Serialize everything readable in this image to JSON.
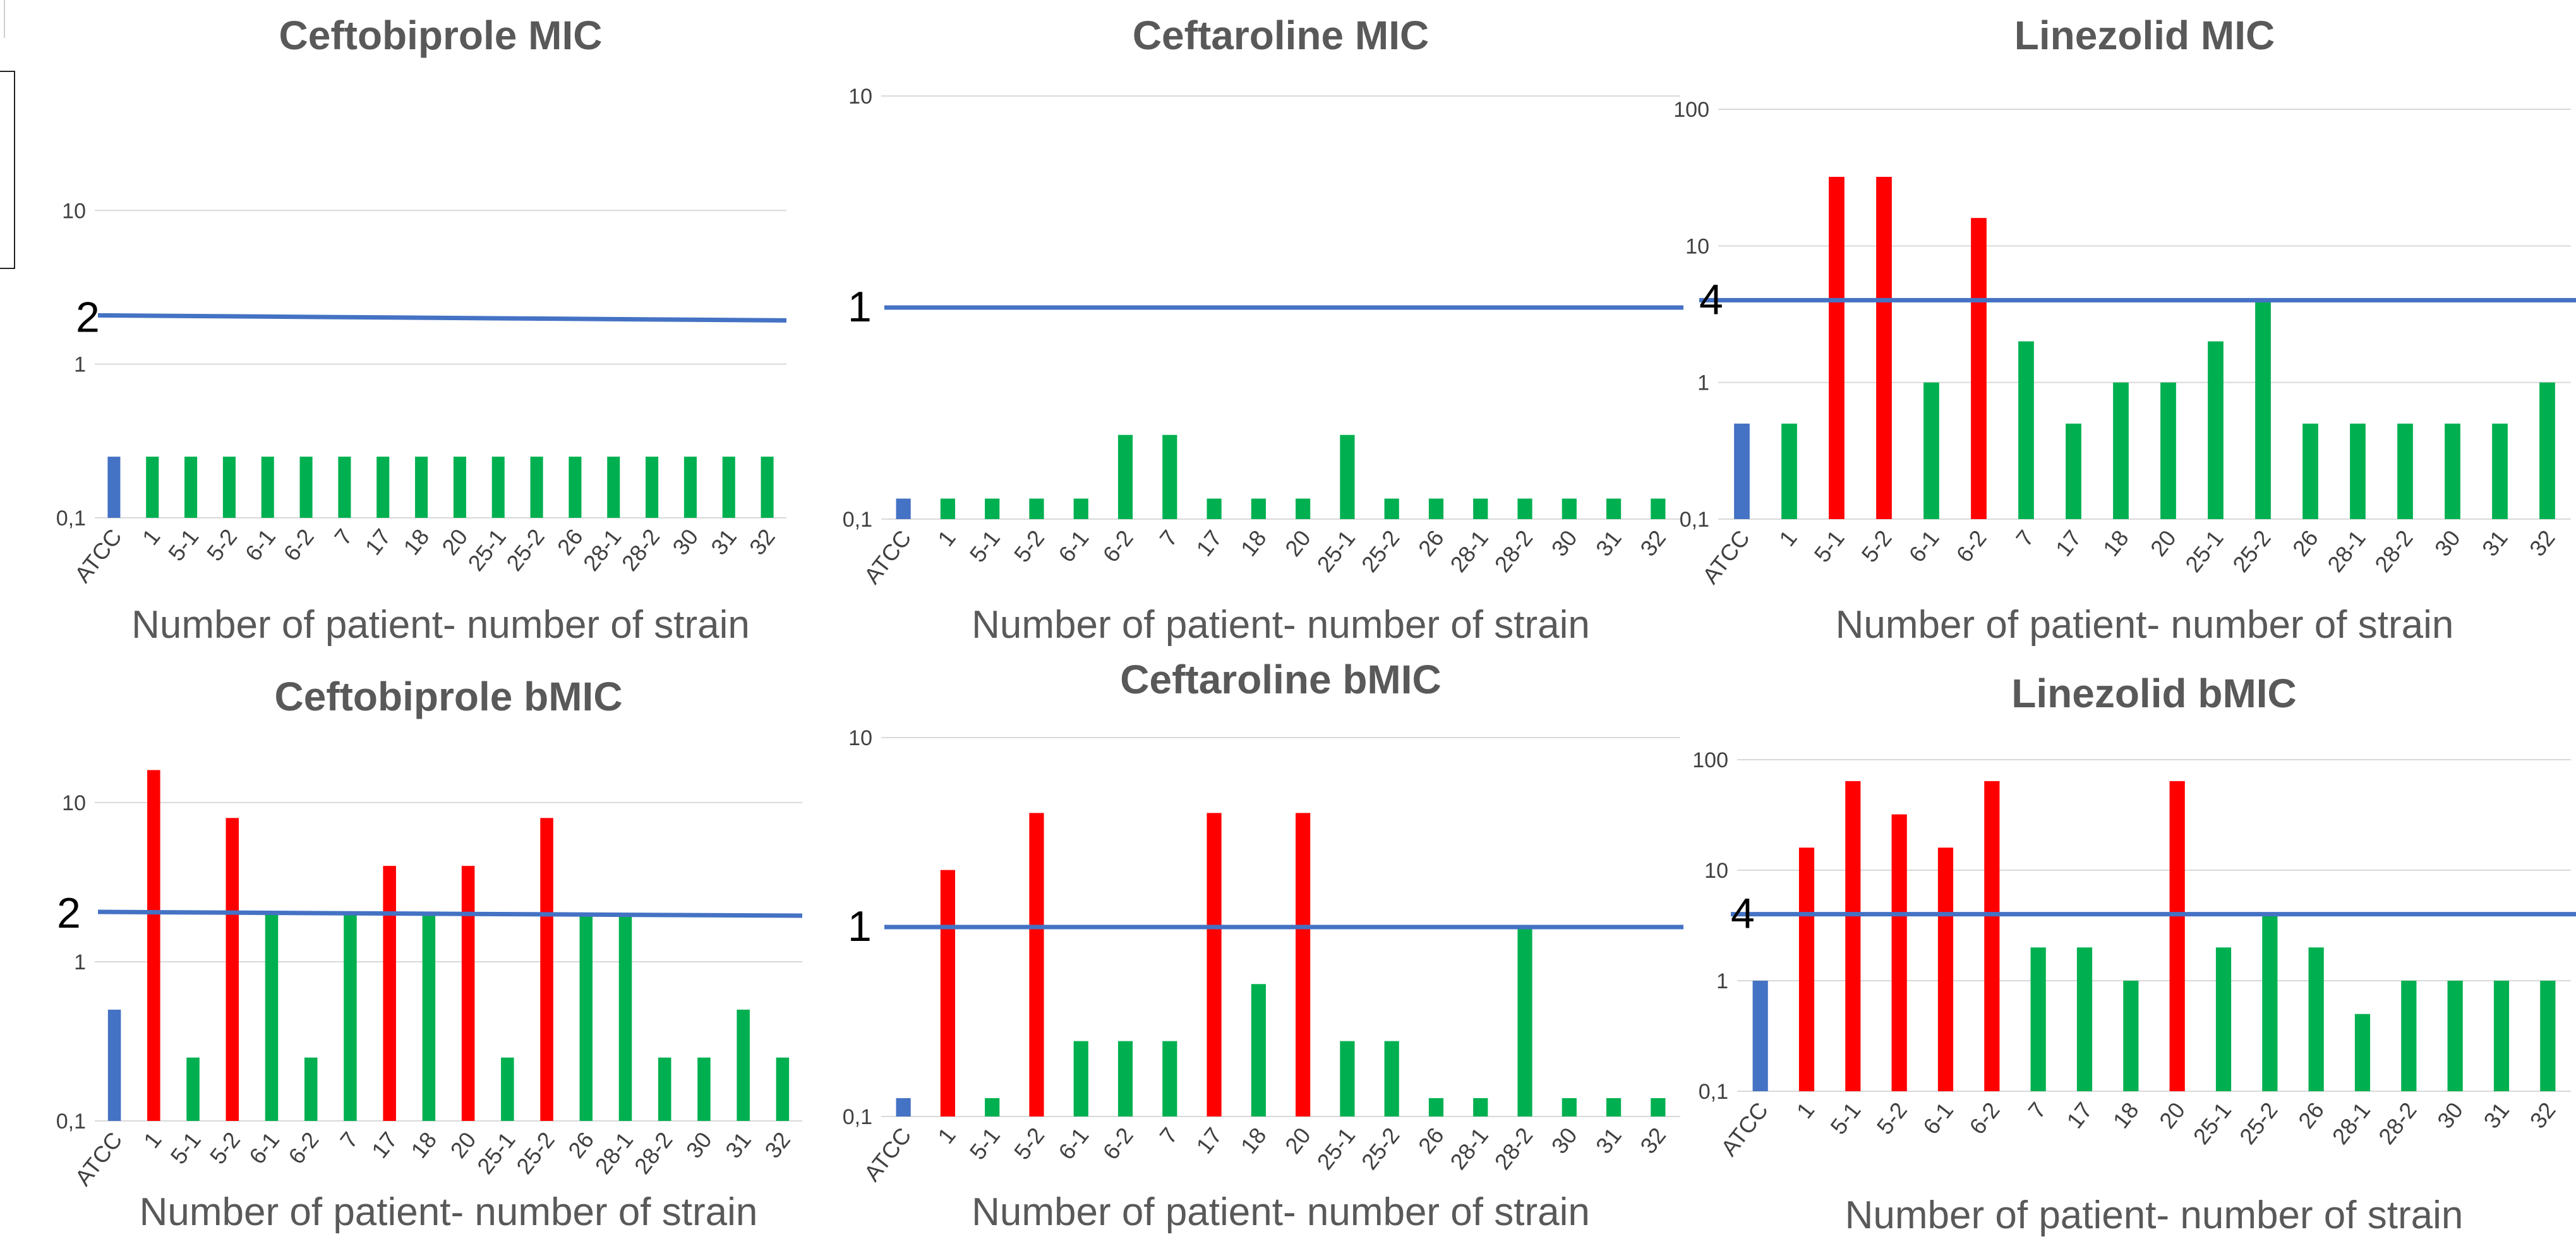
{
  "colors": {
    "atcc": "#4472c4",
    "susceptible": "#00b050",
    "resistant": "#ff0000",
    "breakpoint": "#4472c4"
  },
  "chart_data": [
    {
      "type": "bar",
      "title": "Ceftobiprole MIC",
      "xlabel": "Number of patient- number of strain",
      "ylabel": "",
      "yscale": "log",
      "yticks": [
        "10",
        "1",
        "0,1"
      ],
      "ylim": [
        0.1,
        20
      ],
      "breakpoint": {
        "value": 2,
        "label": "2"
      },
      "categories": [
        "ATCC",
        "1",
        "5-1",
        "5-2",
        "6-1",
        "6-2",
        "7",
        "17",
        "18",
        "20",
        "25-1",
        "25-2",
        "26",
        "28-1",
        "28-2",
        "30",
        "31",
        "32"
      ],
      "values": [
        0.25,
        0.25,
        0.25,
        0.25,
        0.25,
        0.25,
        0.25,
        0.25,
        0.25,
        0.25,
        0.25,
        0.25,
        0.25,
        0.25,
        0.25,
        0.25,
        0.25,
        0.25
      ],
      "bar_colors": [
        "atcc",
        "susceptible",
        "susceptible",
        "susceptible",
        "susceptible",
        "susceptible",
        "susceptible",
        "susceptible",
        "susceptible",
        "susceptible",
        "susceptible",
        "susceptible",
        "susceptible",
        "susceptible",
        "susceptible",
        "susceptible",
        "susceptible",
        "susceptible"
      ]
    },
    {
      "type": "bar",
      "title": "Ceftaroline MIC",
      "xlabel": "Number of patient- number of strain",
      "ylabel": "",
      "yscale": "log",
      "yticks": [
        "10",
        "0,1"
      ],
      "ylim": [
        0.1,
        10
      ],
      "breakpoint": {
        "value": 1,
        "label": "1"
      },
      "categories": [
        "ATCC",
        "1",
        "5-1",
        "5-2",
        "6-1",
        "6-2",
        "7",
        "17",
        "18",
        "20",
        "25-1",
        "25-2",
        "26",
        "28-1",
        "28-2",
        "30",
        "31",
        "32"
      ],
      "values": [
        0.125,
        0.125,
        0.125,
        0.125,
        0.125,
        0.25,
        0.25,
        0.125,
        0.125,
        0.125,
        0.25,
        0.125,
        0.125,
        0.125,
        0.125,
        0.125,
        0.125,
        0.125
      ],
      "bar_colors": [
        "atcc",
        "susceptible",
        "susceptible",
        "susceptible",
        "susceptible",
        "susceptible",
        "susceptible",
        "susceptible",
        "susceptible",
        "susceptible",
        "susceptible",
        "susceptible",
        "susceptible",
        "susceptible",
        "susceptible",
        "susceptible",
        "susceptible",
        "susceptible"
      ]
    },
    {
      "type": "bar",
      "title": "Linezolid MIC",
      "xlabel": "Number of patient- number of strain",
      "ylabel": "",
      "yscale": "log",
      "yticks": [
        "100",
        "10",
        "1",
        "0,1"
      ],
      "ylim": [
        0.1,
        100
      ],
      "breakpoint": {
        "value": 4,
        "label": "4"
      },
      "categories": [
        "ATCC",
        "1",
        "5-1",
        "5-2",
        "6-1",
        "6-2",
        "7",
        "17",
        "18",
        "20",
        "25-1",
        "25-2",
        "26",
        "28-1",
        "28-2",
        "30",
        "31",
        "32"
      ],
      "values": [
        0.5,
        0.5,
        32,
        32,
        1,
        16,
        2,
        0.5,
        1,
        1,
        2,
        4,
        0.5,
        0.5,
        0.5,
        0.5,
        0.5,
        1
      ],
      "bar_colors": [
        "atcc",
        "susceptible",
        "resistant",
        "resistant",
        "susceptible",
        "resistant",
        "susceptible",
        "susceptible",
        "susceptible",
        "susceptible",
        "susceptible",
        "susceptible",
        "susceptible",
        "susceptible",
        "susceptible",
        "susceptible",
        "susceptible",
        "susceptible"
      ]
    },
    {
      "type": "bar",
      "title": "Ceftobiprole bMIC",
      "xlabel": "Number of patient- number of strain",
      "ylabel": "",
      "yscale": "log",
      "yticks": [
        "10",
        "1",
        "0,1"
      ],
      "ylim": [
        0.1,
        20
      ],
      "breakpoint": {
        "value": 2,
        "label": "2"
      },
      "categories": [
        "ATCC",
        "1",
        "5-1",
        "5-2",
        "6-1",
        "6-2",
        "7",
        "17",
        "18",
        "20",
        "25-1",
        "25-2",
        "26",
        "28-1",
        "28-2",
        "30",
        "31",
        "32"
      ],
      "values": [
        0.5,
        16,
        0.25,
        8,
        2,
        0.25,
        2,
        4,
        2,
        4,
        0.25,
        8,
        2,
        2,
        0.25,
        0.25,
        0.5,
        0.25
      ],
      "bar_colors": [
        "atcc",
        "resistant",
        "susceptible",
        "resistant",
        "susceptible",
        "susceptible",
        "susceptible",
        "resistant",
        "susceptible",
        "resistant",
        "susceptible",
        "resistant",
        "susceptible",
        "susceptible",
        "susceptible",
        "susceptible",
        "susceptible",
        "susceptible"
      ]
    },
    {
      "type": "bar",
      "title": "Ceftaroline bMIC",
      "xlabel": "Number of patient- number of strain",
      "ylabel": "",
      "yscale": "log",
      "yticks": [
        "10",
        "0,1"
      ],
      "ylim": [
        0.1,
        10
      ],
      "breakpoint": {
        "value": 1,
        "label": "1"
      },
      "categories": [
        "ATCC",
        "1",
        "5-1",
        "5-2",
        "6-1",
        "6-2",
        "7",
        "17",
        "18",
        "20",
        "25-1",
        "25-2",
        "26",
        "28-1",
        "28-2",
        "30",
        "31",
        "32"
      ],
      "values": [
        0.125,
        2,
        0.125,
        4,
        0.25,
        0.25,
        0.25,
        4,
        0.5,
        4,
        0.25,
        0.25,
        0.125,
        0.125,
        1,
        0.125,
        0.125,
        0.125
      ],
      "bar_colors": [
        "atcc",
        "resistant",
        "susceptible",
        "resistant",
        "susceptible",
        "susceptible",
        "susceptible",
        "resistant",
        "susceptible",
        "resistant",
        "susceptible",
        "susceptible",
        "susceptible",
        "susceptible",
        "susceptible",
        "susceptible",
        "susceptible",
        "susceptible"
      ]
    },
    {
      "type": "bar",
      "title": "Linezolid bMIC",
      "xlabel": "Number of patient- number of strain",
      "ylabel": "",
      "yscale": "log",
      "yticks": [
        "100",
        "10",
        "1",
        "0,1"
      ],
      "ylim": [
        0.1,
        100
      ],
      "breakpoint": {
        "value": 4,
        "label": "4"
      },
      "categories": [
        "ATCC",
        "1",
        "5-1",
        "5-2",
        "6-1",
        "6-2",
        "7",
        "17",
        "18",
        "20",
        "25-1",
        "25-2",
        "26",
        "28-1",
        "28-2",
        "30",
        "31",
        "32"
      ],
      "values": [
        1,
        16,
        64,
        32,
        16,
        64,
        2,
        2,
        1,
        64,
        2,
        4,
        2,
        0.5,
        1,
        1,
        1,
        1
      ],
      "bar_colors": [
        "atcc",
        "resistant",
        "resistant",
        "resistant",
        "resistant",
        "resistant",
        "susceptible",
        "susceptible",
        "susceptible",
        "resistant",
        "susceptible",
        "susceptible",
        "susceptible",
        "susceptible",
        "susceptible",
        "susceptible",
        "susceptible",
        "susceptible"
      ]
    }
  ]
}
